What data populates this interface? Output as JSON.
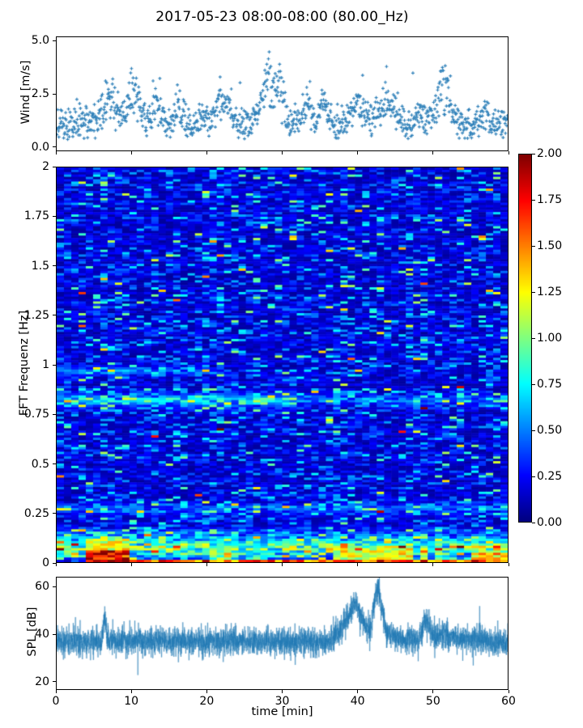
{
  "figure": {
    "title": "2017-05-23 08:00-08:00 (80.00_Hz)",
    "background": "#ffffff"
  },
  "xaxis": {
    "label": "time [min]",
    "tick_values": [
      0,
      10,
      20,
      30,
      40,
      50,
      60
    ],
    "tick_labels": [
      "0",
      "10",
      "20",
      "30",
      "40",
      "50",
      "60"
    ],
    "xlim": [
      0,
      60
    ]
  },
  "colorbar": {
    "colormap": "jet",
    "vmin": 0.0,
    "vmax": 2.0,
    "tick_values": [
      0,
      0.25,
      0.5,
      0.75,
      1.0,
      1.25,
      1.5,
      1.75,
      2.0
    ],
    "tick_labels": [
      "0.00",
      "0.25",
      "0.50",
      "0.75",
      "1.00",
      "1.25",
      "1.50",
      "1.75",
      "2.00"
    ]
  },
  "chart_data": [
    {
      "id": "wind",
      "type": "scatter",
      "ylabel": "Wind [m/s]",
      "xlim": [
        0,
        60
      ],
      "ylim": [
        -0.19,
        5.19
      ],
      "ytick_values": [
        0.0,
        2.5,
        5.0
      ],
      "ytick_labels": [
        "0.0",
        "2.5",
        "5.0"
      ],
      "marker": "plus",
      "marker_color": "#1f77b4",
      "n_points": 1130,
      "seed": 20170523,
      "baseline_mean": 1.1,
      "max_value": 5.0,
      "gusts": [
        [
          7,
          0.9,
          2.1
        ],
        [
          10.3,
          0.7,
          2.7
        ],
        [
          13.2,
          0.6,
          2.0
        ],
        [
          16,
          0.5,
          1.1
        ],
        [
          22,
          0.8,
          1.7
        ],
        [
          28,
          0.9,
          3.2
        ],
        [
          29.7,
          0.5,
          2.5
        ],
        [
          33.5,
          0.5,
          1.3
        ],
        [
          35.5,
          0.5,
          1.5
        ],
        [
          40,
          0.8,
          1.7
        ],
        [
          44,
          0.9,
          1.8
        ],
        [
          48,
          0.4,
          1.0
        ],
        [
          51.5,
          1.0,
          2.4
        ],
        [
          57,
          0.5,
          0.9
        ]
      ]
    },
    {
      "id": "spectrogram",
      "type": "heatmap",
      "ylabel": "FFT Frequenz [Hz]",
      "xlim": [
        0,
        60
      ],
      "ylim": [
        0,
        2
      ],
      "ytick_values": [
        0,
        0.25,
        0.5,
        0.75,
        1,
        1.25,
        1.5,
        1.75,
        2
      ],
      "ytick_labels": [
        "0",
        "0.25",
        "0.5",
        "0.75",
        "1",
        "1.25",
        "1.5",
        "1.75",
        "2"
      ],
      "colormap": "jet",
      "vmin": 0.0,
      "vmax": 2.0,
      "grid_cols": 62,
      "grid_rows": 168,
      "seed": 8899,
      "background": {
        "base": 0.05,
        "exp_scale": 0.14
      },
      "col_variation": [
        0.72,
        1.32
      ],
      "sparkle_prob": 0.018,
      "bands": [
        {
          "freq": 0.82,
          "halfwidth": 0.025,
          "boost": 0.65,
          "t0": 0,
          "t1": 32
        },
        {
          "freq": 0.82,
          "halfwidth": 0.02,
          "boost": 0.35,
          "t0": 32,
          "t1": 60
        },
        {
          "freq": 0.97,
          "halfwidth": 0.015,
          "boost": 0.45,
          "t0": 0,
          "t1": 20
        },
        {
          "freq": 0.27,
          "halfwidth": 0.02,
          "boost": 0.35,
          "t0": 0,
          "t1": 60
        },
        {
          "freq": 0.12,
          "halfwidth": 0.03,
          "boost": 0.5,
          "t0": 0,
          "t1": 60
        },
        {
          "freq": 0.06,
          "halfwidth": 0.03,
          "boost": 0.9,
          "t0": 0,
          "t1": 60
        }
      ],
      "hotspots": [
        {
          "t0": 4,
          "t1": 9.5,
          "f0": 0.004,
          "f1": 0.055,
          "value": 1.95
        },
        {
          "t0": 9.5,
          "t1": 60,
          "f0": 0.0,
          "f1": 0.016,
          "value": 1.75
        },
        {
          "t0": 3.5,
          "t1": 10,
          "f0": 0.05,
          "f1": 0.115,
          "value": 1.25
        },
        {
          "t0": 36.5,
          "t1": 47,
          "f0": 0.012,
          "f1": 0.07,
          "value": 1.3
        },
        {
          "t0": 48,
          "t1": 49.5,
          "f0": 0.01,
          "f1": 0.05,
          "value": 1.15
        },
        {
          "t0": 55,
          "t1": 60,
          "f0": 0.008,
          "f1": 0.05,
          "value": 1.45
        },
        {
          "t0": 20.5,
          "t1": 23,
          "f0": 0.012,
          "f1": 0.045,
          "value": 1.05
        }
      ]
    },
    {
      "id": "spl",
      "type": "line",
      "ylabel": "SPL [dB]",
      "xlim": [
        0,
        60
      ],
      "ylim": [
        16.6,
        64.1
      ],
      "ytick_values": [
        20,
        40,
        60
      ],
      "ytick_labels": [
        "20",
        "40",
        "60"
      ],
      "line_color": "#1f77b4",
      "n_points": 5500,
      "noise_sd": 2.6,
      "seed": 4242,
      "envelope": [
        [
          0,
          37
        ],
        [
          6,
          37
        ],
        [
          6.35,
          49
        ],
        [
          6.7,
          38
        ],
        [
          8,
          37.5
        ],
        [
          20,
          37
        ],
        [
          30,
          37
        ],
        [
          36,
          36.5
        ],
        [
          37.5,
          41
        ],
        [
          38.5,
          46
        ],
        [
          39.8,
          54
        ],
        [
          40.3,
          50
        ],
        [
          41,
          43
        ],
        [
          41.8,
          42
        ],
        [
          42.2,
          52
        ],
        [
          42.7,
          60
        ],
        [
          43.2,
          53
        ],
        [
          43.8,
          42
        ],
        [
          44.5,
          39
        ],
        [
          46,
          37.5
        ],
        [
          48.4,
          38
        ],
        [
          48.9,
          46.5
        ],
        [
          49.4,
          44
        ],
        [
          50.2,
          39.5
        ],
        [
          52,
          40
        ],
        [
          53.5,
          38
        ],
        [
          56,
          38
        ],
        [
          58,
          37
        ],
        [
          60,
          36.5
        ]
      ]
    }
  ]
}
